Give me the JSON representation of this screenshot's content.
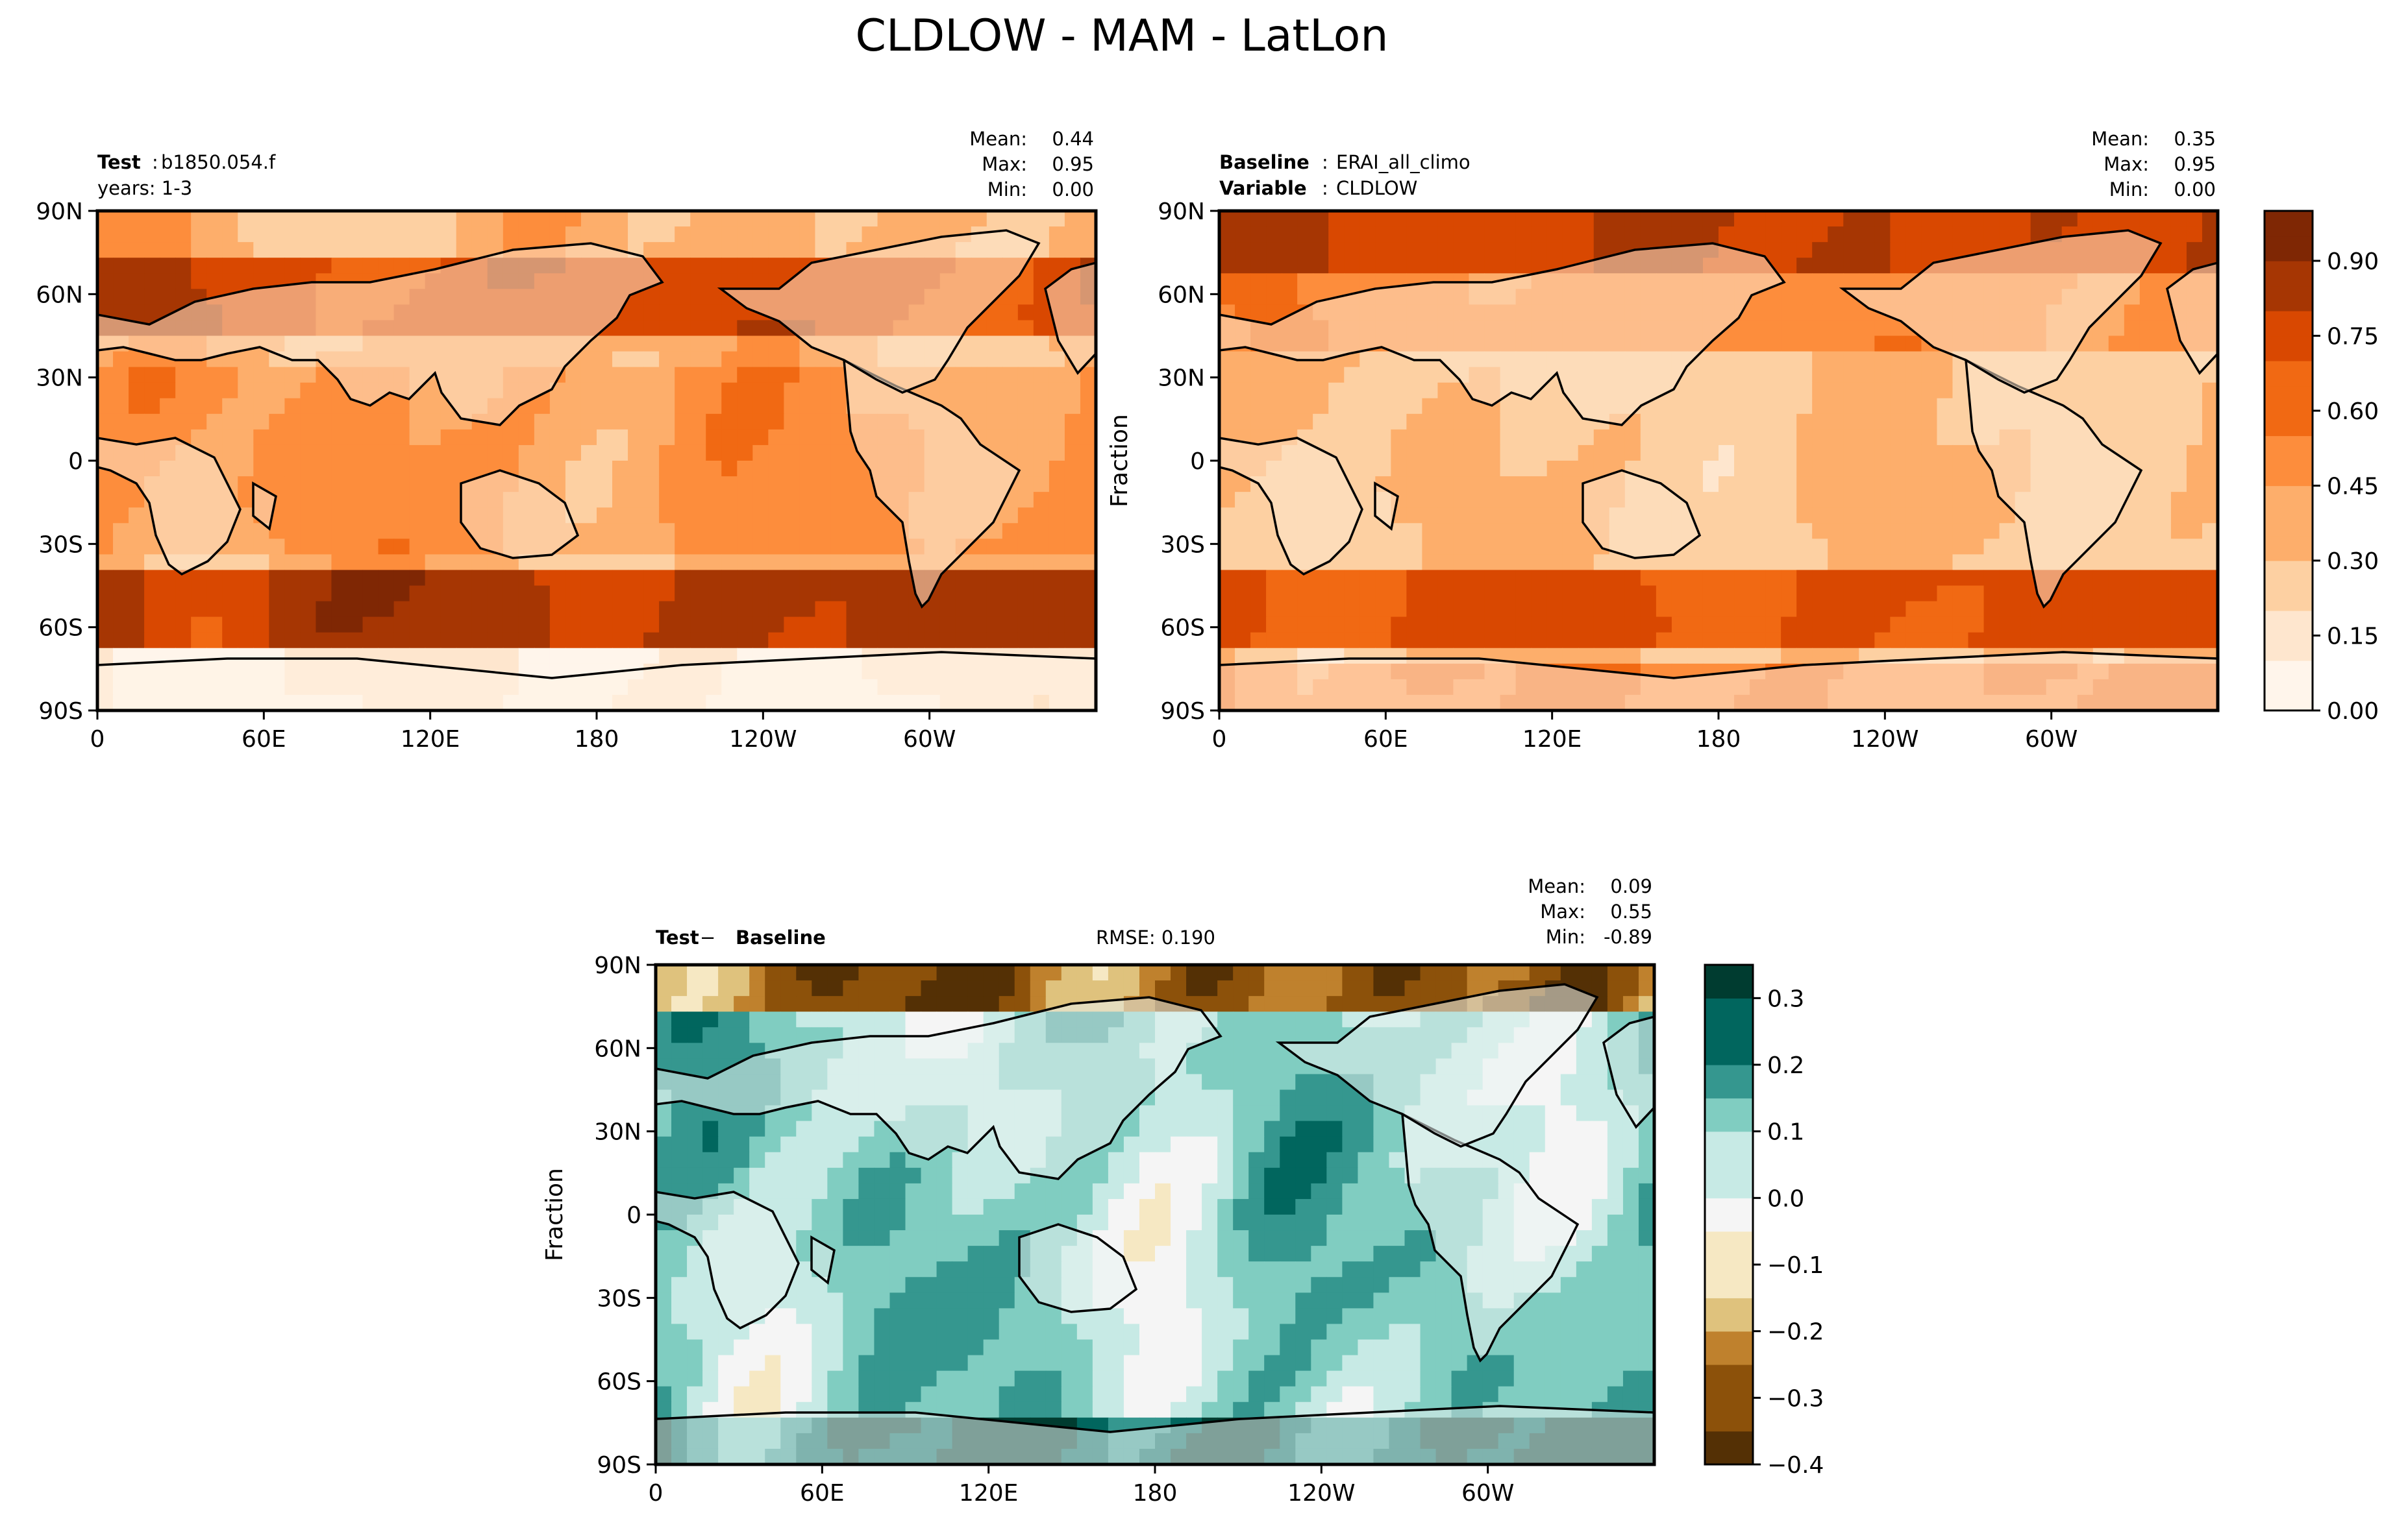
{
  "figure": {
    "title": "CLDLOW - MAM - LatLon"
  },
  "chart_data": [
    {
      "type": "heatmap",
      "id": "test",
      "label_left_bold": "Test",
      "label_left_value": "b1850.054.f",
      "label_left_line2": "years: 1-3",
      "stats": {
        "mean_label": "Mean:",
        "mean": "0.44",
        "max_label": "Max:",
        "max": "0.95",
        "min_label": "Min:",
        "min": "0.00"
      },
      "ylabel": "",
      "xticks": [
        "0",
        "60E",
        "120E",
        "180",
        "120W",
        "60W"
      ],
      "yticks": [
        "90N",
        "60N",
        "30N",
        "0",
        "30S",
        "60S",
        "90S"
      ],
      "field": "test"
    },
    {
      "type": "heatmap",
      "id": "baseline",
      "label_left_bold": "Baseline",
      "label_left_value": "ERAI_all_climo",
      "label_left_bold2": "Variable",
      "label_left_value2": "CLDLOW",
      "stats": {
        "mean_label": "Mean:",
        "mean": "0.35",
        "max_label": "Max:",
        "max": "0.95",
        "min_label": "Min:",
        "min": "0.00"
      },
      "ylabel": "Fraction",
      "xticks": [
        "0",
        "60E",
        "120E",
        "180",
        "120W",
        "60W"
      ],
      "yticks": [
        "90N",
        "60N",
        "30N",
        "0",
        "30S",
        "60S",
        "90S"
      ],
      "colorbar": {
        "ticks": [
          "0.00",
          "0.15",
          "0.30",
          "0.45",
          "0.60",
          "0.75",
          "0.90"
        ],
        "range": [
          0,
          1.0
        ]
      },
      "field": "base"
    },
    {
      "type": "heatmap",
      "id": "diff",
      "label_left_bold": "Test",
      "label_left_sep": " − ",
      "label_left_bold2": "Baseline",
      "rmse": "RMSE: 0.190",
      "stats": {
        "mean_label": "Mean:",
        "mean": "0.09",
        "max_label": "Max:",
        "max": "0.55",
        "min_label": "Min:",
        "min": "-0.89"
      },
      "ylabel": "Fraction",
      "xticks": [
        "0",
        "60E",
        "120E",
        "180",
        "120W",
        "60W"
      ],
      "yticks": [
        "90N",
        "60N",
        "30N",
        "0",
        "30S",
        "60S",
        "90S"
      ],
      "colorbar": {
        "ticks": [
          "0.3",
          "0.2",
          "0.1",
          "0.0",
          "−0.1",
          "−0.2",
          "−0.3",
          "−0.4"
        ],
        "range": [
          -0.4,
          0.35
        ]
      },
      "field": "diff"
    }
  ],
  "colors": {
    "oranges": [
      "#fff5eb",
      "#fee6ce",
      "#fdd0a2",
      "#fdae6b",
      "#fd8d3c",
      "#f16913",
      "#d94801",
      "#a63603",
      "#7f2704"
    ],
    "brbg": [
      "#543005",
      "#8c510a",
      "#bf812d",
      "#dfc27d",
      "#f6e8c3",
      "#f5f5f5",
      "#c7eae5",
      "#80cdc1",
      "#35978f",
      "#01665e",
      "#003c30"
    ]
  }
}
